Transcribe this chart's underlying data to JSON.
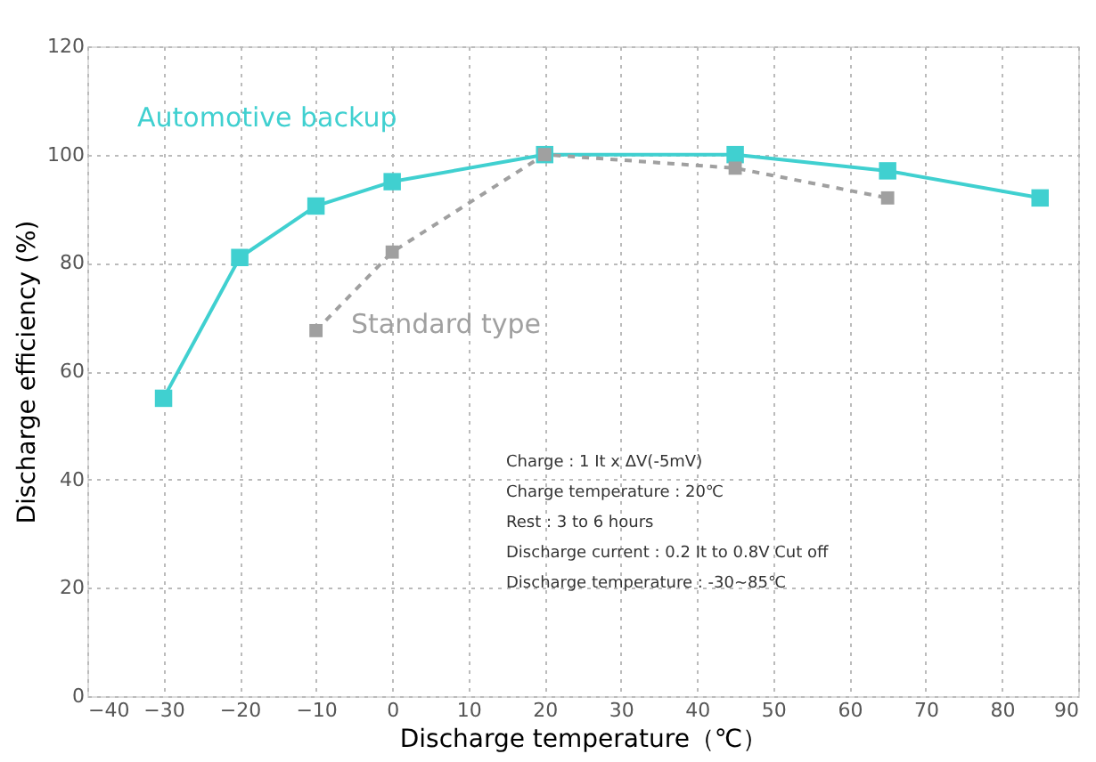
{
  "chart_data": {
    "type": "line",
    "xlabel": "Discharge temperature（℃）",
    "ylabel": "Discharge efficiency  (%)",
    "xlim": [
      -40,
      90
    ],
    "xticks": [
      -40,
      -30,
      -20,
      -10,
      0,
      10,
      20,
      30,
      40,
      50,
      60,
      70,
      80,
      90
    ],
    "ylim": [
      0,
      120
    ],
    "yticks": [
      0,
      20,
      40,
      60,
      80,
      100,
      120
    ],
    "grid": true,
    "marker": "square",
    "series": [
      {
        "name": "Automotive  backup",
        "color": "#40d0d0",
        "line_style": "solid",
        "x": [
          -30,
          -20,
          -10,
          0,
          20,
          45,
          65,
          85
        ],
        "values": [
          55,
          81,
          90.5,
          95,
          100,
          100,
          97,
          92
        ]
      },
      {
        "name": "Standard  type",
        "color": "#a0a0a0",
        "line_style": "dashed",
        "x": [
          -10,
          0,
          20,
          45,
          65
        ],
        "values": [
          67.5,
          82,
          100,
          97.5,
          92
        ]
      }
    ],
    "annotations": [
      "Charge : 1 It x ΔV(-5mV)",
      "Charge temperature   : 20℃",
      "Rest : 3 to 6 hours",
      "Discharge current  : 0.2 It to 0.8V Cut off",
      "Discharge temperature   : -30~85℃"
    ]
  }
}
